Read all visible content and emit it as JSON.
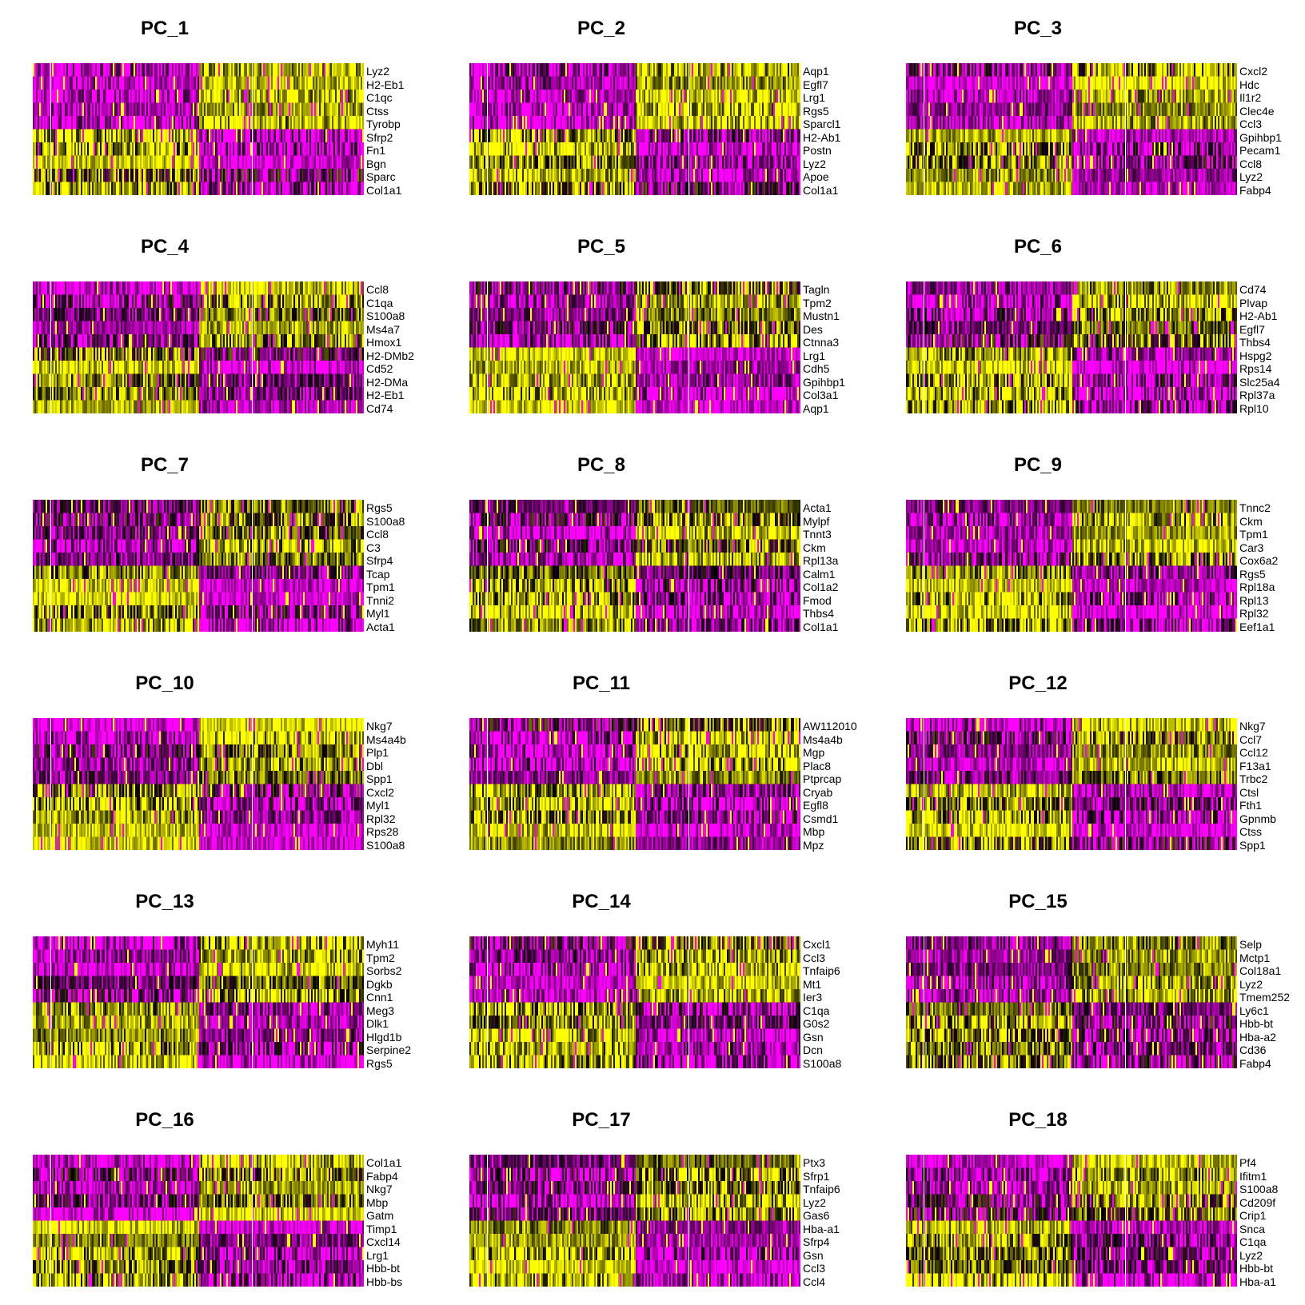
{
  "chart_data": {
    "type": "heatmap",
    "colors": {
      "low": "#ff00ff",
      "mid": "#000000",
      "high": "#ffff00",
      "separator": "#ffffff"
    },
    "panels": [
      {
        "title": "PC_1",
        "genes": [
          "Lyz2",
          "H2-Eb1",
          "C1qc",
          "Ctss",
          "Tyrobp",
          "Sfrp2",
          "Fn1",
          "Bgn",
          "Sparc",
          "Col1a1"
        ]
      },
      {
        "title": "PC_2",
        "genes": [
          "Aqp1",
          "Egfl7",
          "Lrg1",
          "Rgs5",
          "Sparcl1",
          "H2-Ab1",
          "Postn",
          "Lyz2",
          "Apoe",
          "Col1a1"
        ]
      },
      {
        "title": "PC_3",
        "genes": [
          "Cxcl2",
          "Hdc",
          "Il1r2",
          "Clec4e",
          "Ccl3",
          "Gpihbp1",
          "Pecam1",
          "Ccl8",
          "Lyz2",
          "Fabp4"
        ]
      },
      {
        "title": "PC_4",
        "genes": [
          "Ccl8",
          "C1qa",
          "S100a8",
          "Ms4a7",
          "Hmox1",
          "H2-DMb2",
          "Cd52",
          "H2-DMa",
          "H2-Eb1",
          "Cd74"
        ]
      },
      {
        "title": "PC_5",
        "genes": [
          "Tagln",
          "Tpm2",
          "Mustn1",
          "Des",
          "Ctnna3",
          "Lrg1",
          "Cdh5",
          "Gpihbp1",
          "Col3a1",
          "Aqp1"
        ]
      },
      {
        "title": "PC_6",
        "genes": [
          "Cd74",
          "Plvap",
          "H2-Ab1",
          "Egfl7",
          "Thbs4",
          "Hspg2",
          "Rps14",
          "Slc25a4",
          "Rpl37a",
          "Rpl10"
        ]
      },
      {
        "title": "PC_7",
        "genes": [
          "Rgs5",
          "S100a8",
          "Ccl8",
          "C3",
          "Sfrp4",
          "Tcap",
          "Tpm1",
          "Tnni2",
          "Myl1",
          "Acta1"
        ]
      },
      {
        "title": "PC_8",
        "genes": [
          "Acta1",
          "Mylpf",
          "Tnnt3",
          "Ckm",
          "Rpl13a",
          "Calm1",
          "Col1a2",
          "Fmod",
          "Thbs4",
          "Col1a1"
        ]
      },
      {
        "title": "PC_9",
        "genes": [
          "Tnnc2",
          "Ckm",
          "Tpm1",
          "Car3",
          "Cox6a2",
          "Rgs5",
          "Rpl18a",
          "Rpl13",
          "Rpl32",
          "Eef1a1"
        ]
      },
      {
        "title": "PC_10",
        "genes": [
          "Nkg7",
          "Ms4a4b",
          "Plp1",
          "Dbl",
          "Spp1",
          "Cxcl2",
          "Myl1",
          "Rpl32",
          "Rps28",
          "S100a8"
        ]
      },
      {
        "title": "PC_11",
        "genes": [
          "AW112010",
          "Ms4a4b",
          "Mgp",
          "Plac8",
          "Ptprcap",
          "Cryab",
          "Egfl8",
          "Csmd1",
          "Mbp",
          "Mpz"
        ]
      },
      {
        "title": "PC_12",
        "genes": [
          "Nkg7",
          "Ccl7",
          "Ccl12",
          "F13a1",
          "Trbc2",
          "Ctsl",
          "Fth1",
          "Gpnmb",
          "Ctss",
          "Spp1"
        ]
      },
      {
        "title": "PC_13",
        "genes": [
          "Myh11",
          "Tpm2",
          "Sorbs2",
          "Dgkb",
          "Cnn1",
          "Meg3",
          "Dlk1",
          "Hlgd1b",
          "Serpine2",
          "Rgs5"
        ]
      },
      {
        "title": "PC_14",
        "genes": [
          "Cxcl1",
          "Ccl3",
          "Tnfaip6",
          "Mt1",
          "Ier3",
          "C1qa",
          "G0s2",
          "Gsn",
          "Dcn",
          "S100a8"
        ]
      },
      {
        "title": "PC_15",
        "genes": [
          "Selp",
          "Mctp1",
          "Col18a1",
          "Lyz2",
          "Tmem252",
          "Ly6c1",
          "Hbb-bt",
          "Hba-a2",
          "Cd36",
          "Fabp4"
        ]
      },
      {
        "title": "PC_16",
        "genes": [
          "Col1a1",
          "Fabp4",
          "Nkg7",
          "Mbp",
          "Gatm",
          "Timp1",
          "Cxcl14",
          "Lrg1",
          "Hbb-bt",
          "Hbb-bs"
        ]
      },
      {
        "title": "PC_17",
        "genes": [
          "Ptx3",
          "Sfrp1",
          "Tnfaip6",
          "Lyz2",
          "Gas6",
          "Hba-a1",
          "Sfrp4",
          "Gsn",
          "Ccl3",
          "Ccl4"
        ]
      },
      {
        "title": "PC_18",
        "genes": [
          "Pf4",
          "Ifitm1",
          "S100a8",
          "Cd209f",
          "Crip1",
          "Snca",
          "C1qa",
          "Lyz2",
          "Hbb-bt",
          "Hba-a1"
        ]
      }
    ]
  }
}
